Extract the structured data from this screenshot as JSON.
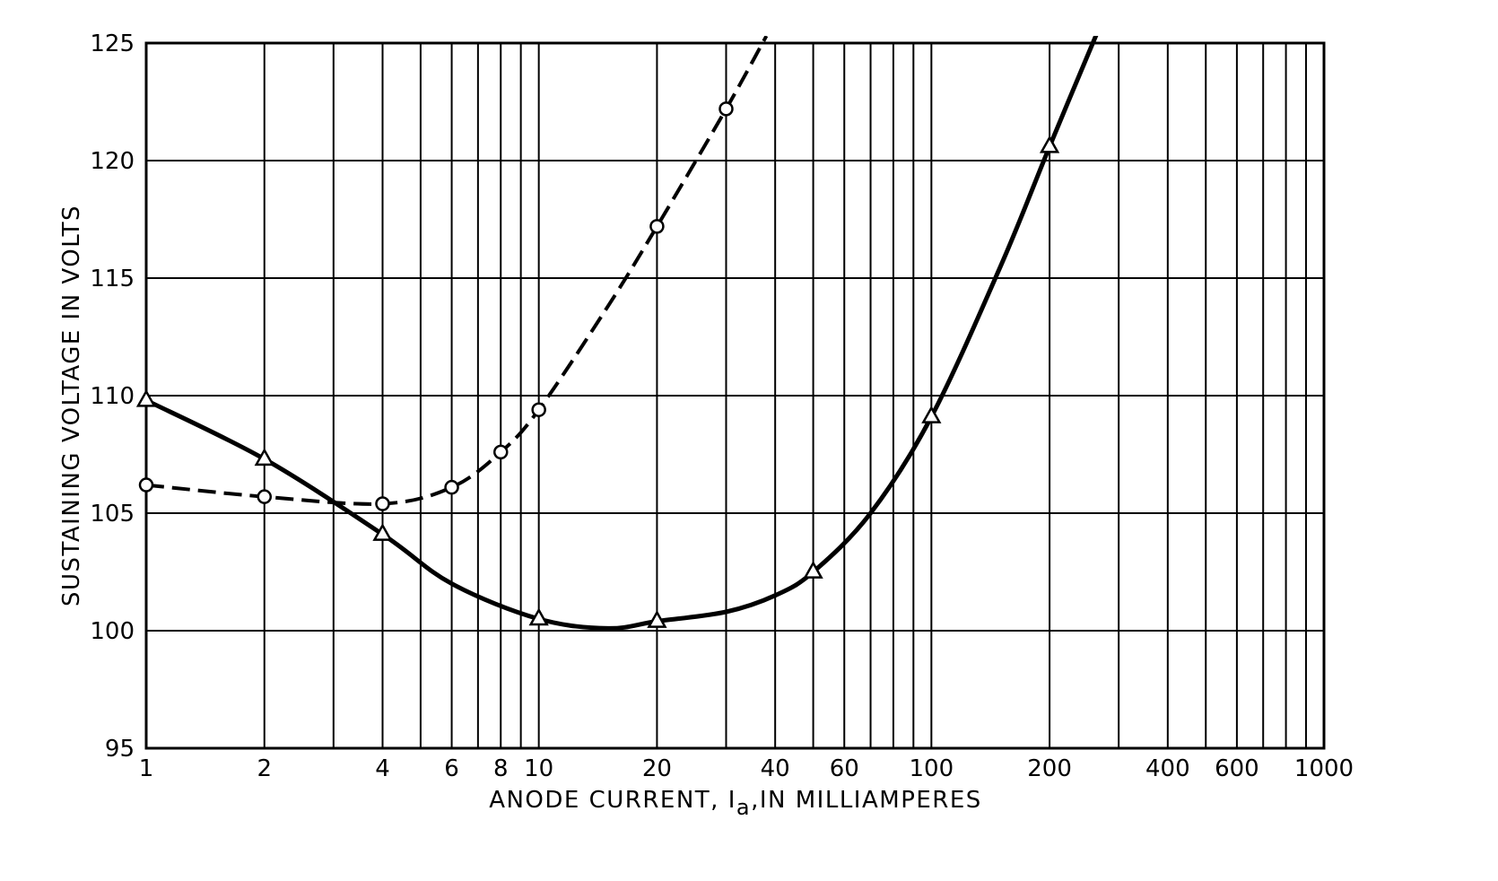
{
  "chart_data": {
    "type": "line",
    "title": "",
    "xlabel": "ANODE CURRENT, I",
    "xlabel_sub": "a",
    "xlabel_suffix": ",IN MILLIAMPERES",
    "ylabel": "SUSTAINING VOLTAGE IN VOLTS",
    "x_scale": "log",
    "xlim": [
      1,
      1000
    ],
    "ylim": [
      95,
      125
    ],
    "grid": true,
    "legend": "none",
    "x_ticks": [
      1,
      2,
      4,
      6,
      8,
      10,
      20,
      40,
      60,
      100,
      200,
      400,
      600,
      1000
    ],
    "x_tick_labels": [
      "1",
      "2",
      "4",
      "6",
      "8",
      "10",
      "20",
      "40",
      "60",
      "100",
      "200",
      "400",
      "600",
      "1000"
    ],
    "y_ticks": [
      95,
      100,
      105,
      110,
      115,
      120,
      125
    ],
    "y_tick_labels": [
      "95",
      "100",
      "105",
      "110",
      "115",
      "120",
      "125"
    ],
    "series": [
      {
        "style": "solid",
        "marker": "triangle",
        "color": "#000000",
        "points": [
          [
            1,
            109.8
          ],
          [
            2,
            107.3
          ],
          [
            4,
            104.1
          ],
          [
            10,
            100.5
          ],
          [
            20,
            100.4
          ],
          [
            50,
            102.5
          ],
          [
            100,
            109.1
          ],
          [
            200,
            120.6
          ]
        ],
        "curve": [
          [
            1,
            109.8
          ],
          [
            2,
            107.3
          ],
          [
            4,
            104.1
          ],
          [
            6,
            102.0
          ],
          [
            10,
            100.5
          ],
          [
            15,
            100.1
          ],
          [
            20,
            100.4
          ],
          [
            30,
            100.8
          ],
          [
            40,
            101.5
          ],
          [
            50,
            102.5
          ],
          [
            70,
            105.0
          ],
          [
            100,
            109.1
          ],
          [
            150,
            115.5
          ],
          [
            200,
            120.6
          ],
          [
            270,
            125.8
          ]
        ]
      },
      {
        "style": "dashed",
        "marker": "circle",
        "color": "#000000",
        "points": [
          [
            1,
            106.2
          ],
          [
            2,
            105.7
          ],
          [
            4,
            105.4
          ],
          [
            6,
            106.1
          ],
          [
            8,
            107.6
          ],
          [
            10,
            109.4
          ],
          [
            20,
            117.2
          ],
          [
            30,
            122.2
          ]
        ],
        "curve": [
          [
            1,
            106.2
          ],
          [
            2,
            105.7
          ],
          [
            4,
            105.4
          ],
          [
            6,
            106.1
          ],
          [
            8,
            107.6
          ],
          [
            10,
            109.4
          ],
          [
            15,
            113.8
          ],
          [
            20,
            117.2
          ],
          [
            30,
            122.2
          ],
          [
            38,
            125.3
          ]
        ]
      }
    ]
  }
}
